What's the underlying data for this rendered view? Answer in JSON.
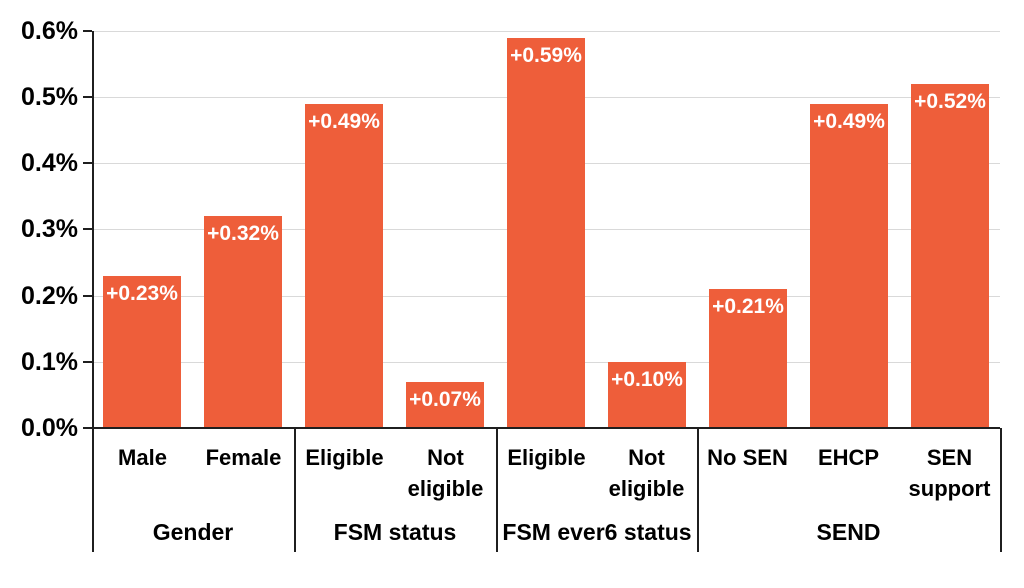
{
  "chart_data": {
    "type": "bar",
    "title": "",
    "xlabel": "",
    "ylabel": "",
    "ylim": [
      0,
      0.006
    ],
    "grid": true,
    "legend": false,
    "bar_color": "#ee5e3a",
    "data_label_color": "#ffffff",
    "axis_color": "#1f1f1f",
    "gridline_color": "#d9d9d9",
    "y_ticks": [
      {
        "label": "0.0%",
        "value": 0.0
      },
      {
        "label": "0.1%",
        "value": 0.001
      },
      {
        "label": "0.2%",
        "value": 0.002
      },
      {
        "label": "0.3%",
        "value": 0.003
      },
      {
        "label": "0.4%",
        "value": 0.004
      },
      {
        "label": "0.5%",
        "value": 0.005
      },
      {
        "label": "0.6%",
        "value": 0.006
      }
    ],
    "groups": [
      {
        "label": "Gender",
        "bars": [
          {
            "category": "Male",
            "value": 0.0023,
            "data_label": "+0.23%"
          },
          {
            "category": "Female",
            "value": 0.0032,
            "data_label": "+0.32%"
          }
        ]
      },
      {
        "label": "FSM status",
        "bars": [
          {
            "category": "Eligible",
            "value": 0.0049,
            "data_label": "+0.49%"
          },
          {
            "category": "Not eligible",
            "value": 0.0007,
            "data_label": "+0.07%"
          }
        ]
      },
      {
        "label": "FSM ever6 status",
        "bars": [
          {
            "category": "Eligible",
            "value": 0.0059,
            "data_label": "+0.59%"
          },
          {
            "category": "Not eligible",
            "value": 0.001,
            "data_label": "+0.10%"
          }
        ]
      },
      {
        "label": "SEND",
        "bars": [
          {
            "category": "No SEN",
            "value": 0.0021,
            "data_label": "+0.21%"
          },
          {
            "category": "EHCP",
            "value": 0.0049,
            "data_label": "+0.49%"
          },
          {
            "category": "SEN support",
            "value": 0.0052,
            "data_label": "+0.52%"
          }
        ]
      }
    ]
  }
}
